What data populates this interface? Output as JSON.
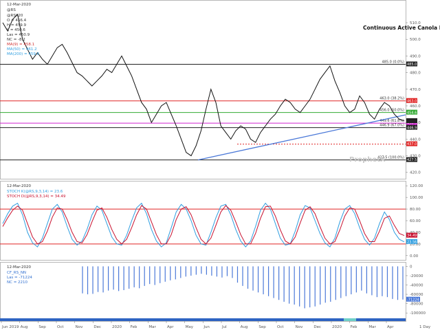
{
  "chart_data": [
    {
      "type": "line",
      "title": "Continuous Active Canola Daily",
      "watermark": "ProphetX",
      "legend_date": "12-Mar-2020",
      "legend_symbol": "@RS",
      "legend_lines": [
        "@RSK20",
        "O = 456.4",
        "H = 459.9",
        "L = 450.6",
        "Las = 450.9",
        "NC = -8.2"
      ],
      "legend_moving_averages": [
        "MA(9) = 458.1",
        "MA(50) = 461.2",
        "MA(200) = 459.6"
      ],
      "x_tick_labels": [
        "Jun 2019",
        "Aug",
        "Sep",
        "Oct",
        "Nov",
        "Dec",
        "2020",
        "Feb",
        "Mar",
        "Apr",
        "May",
        "Jun",
        "Jul",
        "Aug",
        "Sep",
        "Oct",
        "Nov",
        "Dec",
        "2020",
        "Feb",
        "Mar",
        "Apr"
      ],
      "x_axis_corner_label": "1 Day",
      "y_tick_labels": [
        "510.0",
        "500.0",
        "490.0",
        "480.0",
        "470.0",
        "460.0",
        "450.0",
        "440.0",
        "430.0",
        "420.0"
      ],
      "ylim": [
        417,
        522
      ],
      "levels": [
        {
          "value": 485.0,
          "label": "485.0 (0.0%)",
          "color": "#222222",
          "tag": "485.0"
        },
        {
          "value": 463.0,
          "label": "463.0 (38.2%)",
          "color": "#e02424",
          "tag": "463.0"
        },
        {
          "value": 456.0,
          "label": "456.0 (50.0%)",
          "color": "#33aa33",
          "tag": "454.6"
        },
        {
          "value": 449.6,
          "label": "449.6 (61.8%)",
          "color": "#d020d0",
          "tag": "450.9"
        },
        {
          "value": 446.9,
          "label": "446.9 (67.0%)",
          "color": "#222222",
          "tag": "446.9"
        },
        {
          "value": 427.5,
          "label": "427.5 (100.0%)",
          "color": "#222222",
          "tag": "427.5"
        }
      ],
      "dotted_level": {
        "value": 437.0,
        "tag": "437.0",
        "color": "#e02424"
      },
      "trendline": {
        "from": 427.5,
        "to": 454.6,
        "color": "#4a78d8"
      },
      "price_tag": {
        "value": 450.9,
        "color": "#222222"
      },
      "series": [
        {
          "name": "@RSK20",
          "color": "#111111",
          "values": [
            510,
            505,
            512,
            515,
            500,
            494,
            488,
            492,
            488,
            485,
            490,
            495,
            497,
            492,
            486,
            480,
            478,
            475,
            472,
            475,
            478,
            482,
            480,
            485,
            490,
            484,
            478,
            470,
            462,
            458,
            450,
            455,
            460,
            462,
            455,
            448,
            440,
            432,
            430,
            436,
            445,
            458,
            470,
            462,
            448,
            444,
            440,
            445,
            448,
            446,
            440,
            438,
            444,
            448,
            452,
            455,
            460,
            464,
            462,
            458,
            456,
            460,
            464,
            470,
            476,
            480,
            484,
            475,
            468,
            460,
            456,
            458,
            466,
            462,
            455,
            452,
            458,
            462,
            460,
            455,
            452,
            451
          ]
        }
      ]
    },
    {
      "type": "line",
      "legend_date": "12-Mar-2020",
      "legend_lines": [
        "STOCH K(@RS,9,3,14) = 23.6",
        "STOCH D(@RS,9,3,14) = 34.49"
      ],
      "y_tick_labels": [
        "120.00",
        "100.00",
        "80.00",
        "60.00",
        "40.00",
        "20.00",
        "0.00"
      ],
      "ylim": [
        -5,
        125
      ],
      "tags": [
        "34.49",
        "23.56"
      ],
      "levels": [
        {
          "value": 80,
          "color": "#e02424"
        },
        {
          "value": 20,
          "color": "#e02424"
        }
      ],
      "series": [
        {
          "name": "STOCH K(@RS,9,3,14)",
          "color": "#2f9ee0",
          "values": [
            55,
            72,
            85,
            90,
            70,
            40,
            22,
            15,
            30,
            55,
            80,
            88,
            75,
            50,
            28,
            18,
            25,
            45,
            70,
            85,
            78,
            55,
            32,
            20,
            18,
            35,
            60,
            82,
            90,
            72,
            45,
            25,
            15,
            22,
            48,
            75,
            88,
            80,
            60,
            35,
            20,
            18,
            40,
            65,
            85,
            88,
            70,
            45,
            25,
            15,
            25,
            50,
            78,
            90,
            80,
            55,
            30,
            18,
            20,
            42,
            70,
            86,
            82,
            60,
            38,
            22,
            15,
            30,
            58,
            80,
            86,
            72,
            48,
            28,
            18,
            30,
            55,
            75,
            62,
            40,
            28,
            23.6
          ]
        },
        {
          "name": "STOCH D(@RS,9,3,14)",
          "color": "#c8102e",
          "values": [
            50,
            65,
            78,
            85,
            78,
            55,
            32,
            20,
            24,
            42,
            66,
            82,
            80,
            62,
            40,
            24,
            22,
            36,
            58,
            78,
            82,
            66,
            45,
            28,
            20,
            28,
            48,
            70,
            86,
            80,
            58,
            36,
            20,
            20,
            36,
            62,
            80,
            84,
            70,
            48,
            28,
            20,
            30,
            52,
            75,
            86,
            78,
            58,
            36,
            20,
            20,
            38,
            64,
            84,
            85,
            68,
            44,
            25,
            20,
            32,
            56,
            78,
            84,
            72,
            50,
            30,
            20,
            24,
            44,
            68,
            82,
            80,
            60,
            38,
            24,
            24,
            42,
            64,
            68,
            52,
            38,
            34.49
          ]
        }
      ]
    },
    {
      "type": "bar",
      "legend_date": "12-Mar-2020",
      "legend_lines": [
        "CF_RS_NN",
        "Las = -71224",
        "NC = 2210"
      ],
      "y_tick_labels": [
        "0",
        "-20000",
        "-40000",
        "-60000",
        "-80000",
        "-100000"
      ],
      "ylim": [
        -110000,
        5000
      ],
      "tag": "-71224",
      "series": [
        {
          "name": "CF_RS_NN",
          "color": "#4a78d8",
          "values": [
            -58000,
            -60000,
            -59000,
            -55000,
            -56000,
            -52000,
            -50000,
            -53000,
            -51000,
            -48000,
            -45000,
            -47000,
            -42000,
            -38000,
            -40000,
            -36000,
            -33000,
            -30000,
            -28000,
            -25000,
            -22000,
            -20000,
            -18000,
            -16000,
            -18000,
            -20000,
            -22000,
            -24000,
            -21000,
            -25000,
            -35000,
            -42000,
            -48000,
            -52000,
            -56000,
            -60000,
            -64000,
            -68000,
            -72000,
            -76000,
            -80000,
            -82000,
            -86000,
            -90000,
            -88000,
            -86000,
            -82000,
            -78000,
            -76000,
            -72000,
            -68000,
            -64000,
            -60000,
            -56000,
            -52000,
            -58000,
            -62000,
            -66000,
            -64000,
            -66000,
            -70000,
            -72000,
            -71224
          ]
        }
      ]
    }
  ]
}
